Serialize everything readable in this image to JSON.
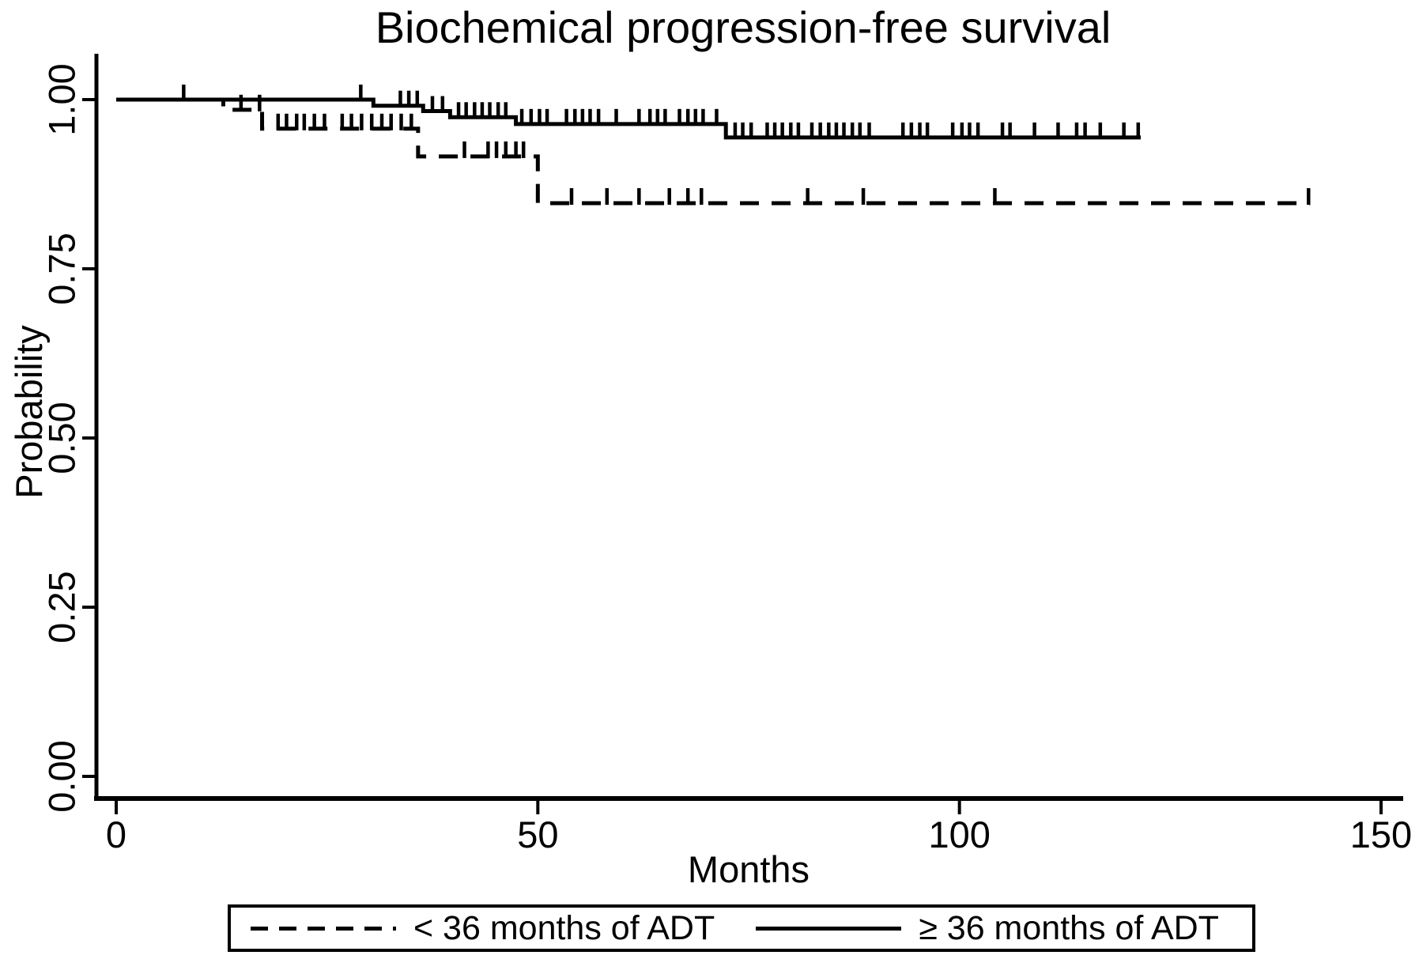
{
  "title": "Biochemical progression-free survival",
  "colors": {
    "line": "#000000",
    "background": "#ffffff"
  },
  "axes": {
    "x": {
      "label": "Months",
      "tick_labels": [
        "0",
        "50",
        "100",
        "150"
      ],
      "tick_values": [
        0,
        50,
        100,
        150
      ]
    },
    "y": {
      "label": "Probability",
      "tick_labels": [
        "0.00",
        "0.25",
        "0.50",
        "0.75",
        "1.00"
      ],
      "tick_values": [
        0,
        0.25,
        0.5,
        0.75,
        1.0
      ]
    }
  },
  "legend": {
    "items": [
      {
        "label": "< 36 months of ADT",
        "style": "dashed"
      },
      {
        "label": "≥ 36 months of ADT",
        "style": "solid"
      }
    ]
  },
  "chart_data": {
    "type": "line",
    "subtype": "kaplan-meier-step",
    "title": "Biochemical progression-free survival",
    "xlabel": "Months",
    "ylabel": "Probability",
    "xlim": [
      0,
      150
    ],
    "ylim": [
      0,
      1
    ],
    "grid": false,
    "legend_position": "bottom-outside",
    "series": [
      {
        "name": "< 36 months of ADT",
        "style": "dashed",
        "steps": [
          [
            0,
            1.0
          ],
          [
            12.7,
            0.985
          ],
          [
            17.3,
            0.957
          ],
          [
            35.8,
            0.916
          ],
          [
            50.0,
            0.847
          ]
        ],
        "end_x": 141.6,
        "censor_ticks_x": [
          14.8,
          17.0,
          19.2,
          20.2,
          21.4,
          22.3,
          23.5,
          24.7,
          26.8,
          27.9,
          29.1,
          30.3,
          31.5,
          32.6,
          33.8,
          35.0,
          41.3,
          44.1,
          45.1,
          46.2,
          47.4,
          48.3,
          54.0,
          58.2,
          62.0,
          65.6,
          67.8,
          69.4,
          82.0,
          88.6,
          104.2,
          141.4
        ]
      },
      {
        "name": "≥ 36 months of ADT",
        "style": "solid",
        "steps": [
          [
            0,
            1.0
          ],
          [
            30.5,
            0.991
          ],
          [
            36.4,
            0.983
          ],
          [
            39.6,
            0.974
          ],
          [
            47.4,
            0.964
          ],
          [
            72.3,
            0.944
          ]
        ],
        "end_x": 121.5,
        "censor_ticks_x": [
          8.0,
          29.0,
          33.7,
          34.7,
          35.7,
          37.5,
          38.7,
          40.6,
          41.5,
          42.5,
          43.4,
          44.3,
          45.3,
          46.2,
          48.1,
          49.2,
          50.2,
          51.1,
          53.4,
          54.4,
          55.3,
          56.2,
          57.2,
          59.3,
          62.0,
          63.3,
          64.2,
          65.1,
          66.8,
          67.8,
          68.7,
          69.6,
          71.2,
          73.4,
          74.3,
          75.3,
          77.2,
          78.1,
          79.0,
          80.0,
          80.9,
          82.5,
          83.5,
          84.5,
          85.4,
          86.3,
          87.3,
          88.2,
          89.3,
          93.3,
          94.3,
          95.3,
          96.2,
          99.2,
          100.3,
          101.2,
          102.2,
          105.1,
          106.0,
          108.9,
          111.7,
          113.9,
          114.9,
          116.7,
          119.5,
          121.2
        ]
      }
    ]
  }
}
